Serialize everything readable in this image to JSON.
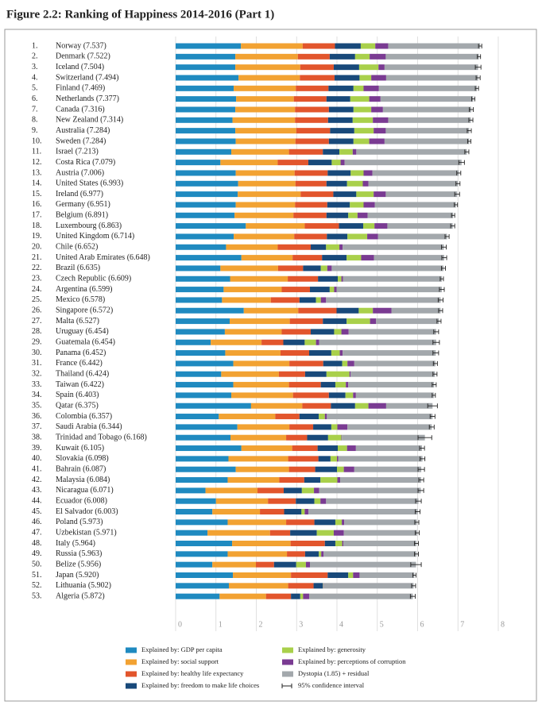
{
  "chart_data": {
    "type": "stacked-barh",
    "title": "Figure 2.2: Ranking of Happiness 2014-2016 (Part 1)",
    "rank_labels": [
      "1.",
      "2.",
      "3.",
      "4.",
      "5.",
      "6.",
      "7.",
      "8.",
      "9.",
      "10.",
      "11.",
      "12.",
      "13.",
      "14.",
      "15.",
      "16.",
      "17.",
      "18.",
      "19.",
      "20.",
      "21.",
      "22.",
      "23.",
      "24.",
      "25.",
      "26.",
      "27.",
      "28.",
      "29.",
      "30.",
      "31.",
      "32.",
      "33.",
      "34.",
      "35.",
      "36.",
      "37.",
      "38.",
      "39.",
      "40.",
      "41.",
      "42.",
      "43.",
      "44.",
      "45.",
      "46.",
      "47.",
      "48.",
      "49.",
      "50.",
      "51.",
      "52.",
      "53."
    ],
    "categories": [
      "Norway (7.537)",
      "Denmark (7.522)",
      "Iceland (7.504)",
      "Switzerland (7.494)",
      "Finland (7.469)",
      "Netherlands (7.377)",
      "Canada (7.316)",
      "New Zealand (7.314)",
      "Australia (7.284)",
      "Sweden (7.284)",
      "Israel (7.213)",
      "Costa Rica (7.079)",
      "Austria (7.006)",
      "United States (6.993)",
      "Ireland (6.977)",
      "Germany (6.951)",
      "Belgium (6.891)",
      "Luxembourg (6.863)",
      "United Kingdom (6.714)",
      "Chile (6.652)",
      "United Arab Emirates (6.648)",
      "Brazil (6.635)",
      "Czech Republic (6.609)",
      "Argentina (6.599)",
      "Mexico (6.578)",
      "Singapore (6.572)",
      "Malta (6.527)",
      "Uruguay (6.454)",
      "Guatemala (6.454)",
      "Panama (6.452)",
      "France (6.442)",
      "Thailand (6.424)",
      "Taiwan (6.422)",
      "Spain (6.403)",
      "Qatar (6.375)",
      "Colombia (6.357)",
      "Saudi Arabia (6.344)",
      "Trinidad and Tobago (6.168)",
      "Kuwait (6.105)",
      "Slovakia (6.098)",
      "Bahrain (6.087)",
      "Malaysia (6.084)",
      "Nicaragua (6.071)",
      "Ecuador (6.008)",
      "El Salvador (6.003)",
      "Poland (5.973)",
      "Uzbekistan (5.971)",
      "Italy (5.964)",
      "Russia (5.963)",
      "Belize (5.956)",
      "Japan (5.920)",
      "Lithuania (5.902)",
      "Algeria (5.872)"
    ],
    "series": [
      {
        "name": "Explained by: GDP per capita",
        "color": "#1f8ac0",
        "values": [
          1.62,
          1.48,
          1.48,
          1.56,
          1.44,
          1.5,
          1.48,
          1.41,
          1.48,
          1.49,
          1.38,
          1.11,
          1.49,
          1.55,
          1.54,
          1.49,
          1.46,
          1.74,
          1.44,
          1.25,
          1.63,
          1.11,
          1.35,
          1.19,
          1.15,
          1.69,
          1.34,
          1.22,
          0.87,
          1.23,
          1.43,
          1.13,
          1.43,
          1.38,
          1.87,
          1.07,
          1.53,
          1.36,
          1.63,
          1.31,
          1.49,
          1.29,
          0.74,
          1.0,
          0.91,
          1.29,
          0.79,
          1.4,
          1.29,
          0.91,
          1.42,
          1.32,
          1.09
        ]
      },
      {
        "name": "Explained by: social support",
        "color": "#f2a232",
        "values": [
          1.53,
          1.55,
          1.61,
          1.52,
          1.54,
          1.43,
          1.48,
          1.55,
          1.51,
          1.48,
          1.43,
          1.42,
          1.46,
          1.42,
          1.56,
          1.47,
          1.46,
          1.46,
          1.5,
          1.28,
          1.27,
          1.43,
          1.43,
          1.44,
          1.21,
          1.35,
          1.49,
          1.41,
          1.26,
          1.37,
          1.39,
          1.43,
          1.38,
          1.53,
          1.27,
          1.4,
          1.29,
          1.38,
          1.26,
          1.48,
          1.32,
          1.28,
          1.29,
          1.29,
          1.18,
          1.45,
          1.55,
          1.45,
          1.47,
          1.08,
          1.44,
          1.47,
          1.15
        ]
      },
      {
        "name": "Explained by: healthy life expectancy",
        "color": "#e2552c",
        "values": [
          0.8,
          0.79,
          0.83,
          0.86,
          0.81,
          0.81,
          0.84,
          0.82,
          0.84,
          0.83,
          0.84,
          0.76,
          0.82,
          0.77,
          0.81,
          0.8,
          0.82,
          0.85,
          0.81,
          0.82,
          0.73,
          0.62,
          0.75,
          0.7,
          0.71,
          0.95,
          0.82,
          0.72,
          0.54,
          0.71,
          0.84,
          0.65,
          0.79,
          0.89,
          0.71,
          0.6,
          0.59,
          0.52,
          0.63,
          0.75,
          0.65,
          0.62,
          0.65,
          0.69,
          0.6,
          0.7,
          0.5,
          0.85,
          0.45,
          0.45,
          0.91,
          0.63,
          0.62
        ]
      },
      {
        "name": "Explained by: freedom to make life choices",
        "color": "#18497a",
        "values": [
          0.64,
          0.63,
          0.63,
          0.62,
          0.62,
          0.59,
          0.61,
          0.61,
          0.6,
          0.61,
          0.41,
          0.58,
          0.57,
          0.51,
          0.57,
          0.56,
          0.54,
          0.6,
          0.51,
          0.38,
          0.61,
          0.44,
          0.49,
          0.49,
          0.41,
          0.55,
          0.59,
          0.58,
          0.53,
          0.55,
          0.47,
          0.53,
          0.36,
          0.41,
          0.6,
          0.48,
          0.45,
          0.52,
          0.5,
          0.3,
          0.54,
          0.4,
          0.45,
          0.46,
          0.43,
          0.52,
          0.66,
          0.26,
          0.34,
          0.55,
          0.51,
          0.23,
          0.23
        ]
      },
      {
        "name": "Explained by: generosity",
        "color": "#a9d04b",
        "values": [
          0.36,
          0.36,
          0.48,
          0.29,
          0.25,
          0.47,
          0.44,
          0.5,
          0.48,
          0.39,
          0.33,
          0.22,
          0.32,
          0.39,
          0.43,
          0.34,
          0.23,
          0.28,
          0.49,
          0.33,
          0.36,
          0.16,
          0.09,
          0.11,
          0.12,
          0.35,
          0.58,
          0.18,
          0.28,
          0.21,
          0.13,
          0.57,
          0.26,
          0.19,
          0.33,
          0.15,
          0.15,
          0.33,
          0.23,
          0.16,
          0.17,
          0.42,
          0.3,
          0.15,
          0.08,
          0.16,
          0.42,
          0.17,
          0.06,
          0.24,
          0.12,
          0.01,
          0.07
        ]
      },
      {
        "name": "Explained by: perceptions of corruption",
        "color": "#7a3b92",
        "values": [
          0.32,
          0.4,
          0.15,
          0.37,
          0.38,
          0.28,
          0.29,
          0.38,
          0.3,
          0.38,
          0.09,
          0.1,
          0.22,
          0.14,
          0.3,
          0.28,
          0.25,
          0.32,
          0.27,
          0.08,
          0.32,
          0.11,
          0.04,
          0.06,
          0.13,
          0.46,
          0.15,
          0.18,
          0.08,
          0.07,
          0.17,
          0.03,
          0.06,
          0.07,
          0.44,
          0.05,
          0.25,
          0.01,
          0.22,
          0.03,
          0.26,
          0.07,
          0.13,
          0.14,
          0.09,
          0.06,
          0.25,
          0.03,
          0.06,
          0.1,
          0.16,
          0.01,
          0.15
        ]
      },
      {
        "name": "Dystopia (1.85) + residual",
        "color": "#a3a8ac",
        "values": [
          2.28,
          2.31,
          2.32,
          2.28,
          2.43,
          2.3,
          2.19,
          2.05,
          2.07,
          2.1,
          2.74,
          2.9,
          2.14,
          2.22,
          1.77,
          2.01,
          2.12,
          1.62,
          1.71,
          2.51,
          1.74,
          2.77,
          2.45,
          2.61,
          2.84,
          1.22,
          1.56,
          2.17,
          2.9,
          2.31,
          2.01,
          2.09,
          2.13,
          1.93,
          1.15,
          2.62,
          2.09,
          2.06,
          1.64,
          2.09,
          1.66,
          2.01,
          2.52,
          2.29,
          2.71,
          1.8,
          1.82,
          1.81,
          2.3,
          2.63,
          1.36,
          2.23,
          2.57
        ]
      }
    ],
    "errors": [
      0.04,
      0.04,
      0.07,
      0.05,
      0.04,
      0.04,
      0.05,
      0.05,
      0.05,
      0.04,
      0.05,
      0.07,
      0.05,
      0.05,
      0.06,
      0.04,
      0.04,
      0.05,
      0.05,
      0.06,
      0.06,
      0.05,
      0.04,
      0.06,
      0.06,
      0.05,
      0.05,
      0.06,
      0.08,
      0.07,
      0.05,
      0.05,
      0.05,
      0.04,
      0.12,
      0.06,
      0.06,
      0.17,
      0.06,
      0.06,
      0.08,
      0.06,
      0.07,
      0.07,
      0.06,
      0.05,
      0.05,
      0.05,
      0.05,
      0.13,
      0.04,
      0.05,
      0.06
    ],
    "error_label": "95% confidence interval",
    "xlim": [
      0,
      8
    ],
    "xticks": [
      0,
      1,
      2,
      3,
      4,
      5,
      6,
      7,
      8
    ],
    "grid": true
  }
}
